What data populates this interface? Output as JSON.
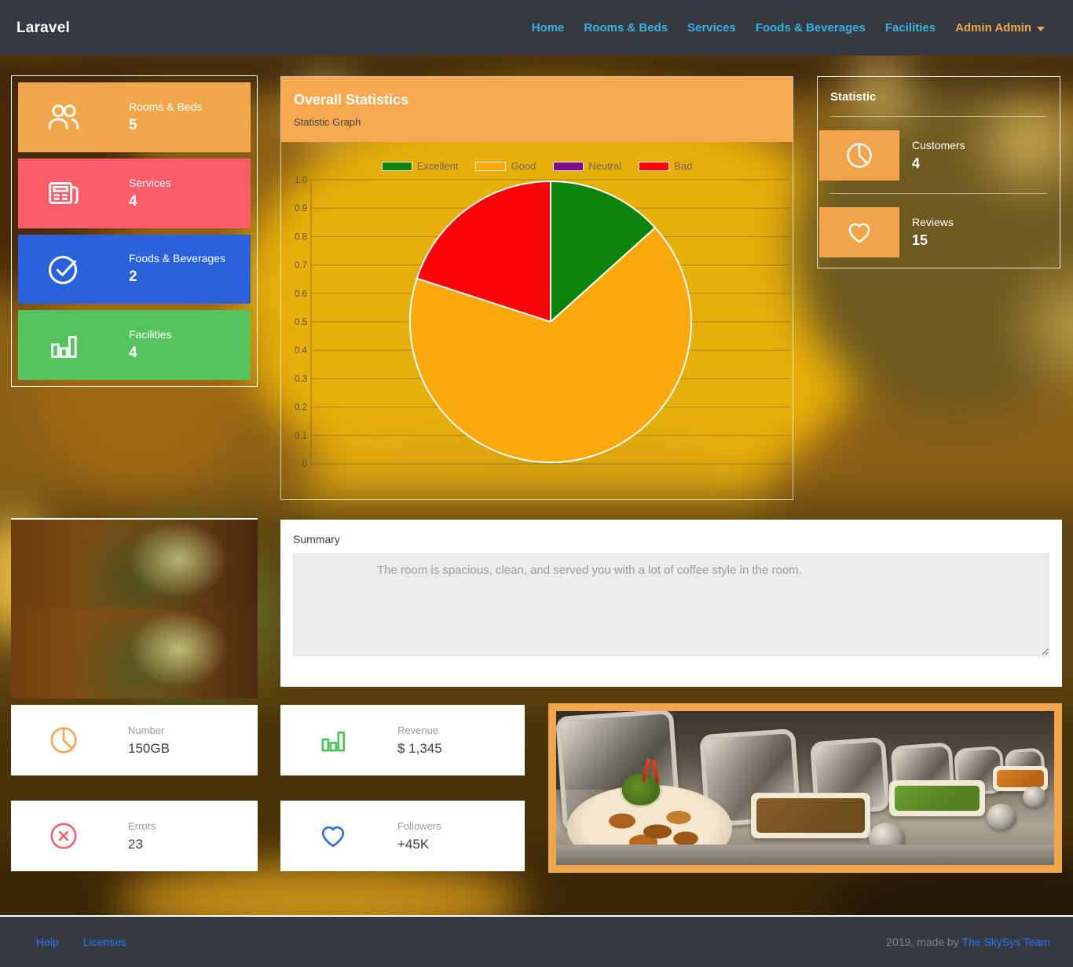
{
  "navbar": {
    "brand": "Laravel",
    "links": [
      "Home",
      "Rooms & Beds",
      "Services",
      "Foods & Beverages",
      "Facilities"
    ],
    "user": "Admin Admin",
    "bg_color": "#343a40",
    "link_color": "#3ab0e2",
    "user_color": "#f0a54c"
  },
  "sidebar": {
    "cards": [
      {
        "label": "Rooms & Beds",
        "value": "5",
        "color": "#f0a74c",
        "icon": "users-icon"
      },
      {
        "label": "Services",
        "value": "4",
        "color": "#f95d6a",
        "icon": "newspaper-icon"
      },
      {
        "label": "Foods & Beverages",
        "value": "2",
        "color": "#2a62de",
        "icon": "check-circle-icon"
      },
      {
        "label": "Facilities",
        "value": "4",
        "color": "#55c45e",
        "icon": "bar-chart-icon"
      }
    ]
  },
  "overall_panel": {
    "title": "Overall Statistics",
    "subtitle": "Statistic Graph",
    "header_color": "#f6a950"
  },
  "chart_data": {
    "type": "pie",
    "title": "Overall Statistics",
    "subtitle": "Statistic Graph",
    "categories": [
      "Excellent",
      "Good",
      "Neutral",
      "Bad"
    ],
    "values": [
      2,
      10,
      0,
      3
    ],
    "total": 15,
    "fractions": [
      0.133,
      0.667,
      0,
      0.2
    ],
    "colors": [
      "#0d830d",
      "#fba80b",
      "#7e0d87",
      "#fa0507"
    ],
    "y_axis_ticks": [
      "1.0",
      "0.9",
      "0.8",
      "0.7",
      "0.6",
      "0.5",
      "0.4",
      "0.3",
      "0.2",
      "0.1",
      "0"
    ],
    "ylim": [
      0,
      1
    ],
    "grid": true,
    "legend_position": "top-center"
  },
  "statistic_panel": {
    "title": "Statistic",
    "items": [
      {
        "label": "Customers",
        "value": "4",
        "icon": "pie-chart-icon",
        "color": "#f2a44c"
      },
      {
        "label": "Reviews",
        "value": "15",
        "icon": "heart-icon",
        "color": "#f2a44c"
      }
    ]
  },
  "summary": {
    "label": "Summary",
    "placeholder": "The room is spacious, clean, and served you with a lot of coffee style in the room."
  },
  "stat_cards": [
    {
      "label": "Number",
      "value": "150GB",
      "icon": "pie-chart-icon",
      "color": "#f0a44c"
    },
    {
      "label": "Revenue",
      "value": "$ 1,345",
      "icon": "bar-chart-icon",
      "color": "#4cc15a"
    },
    {
      "label": "Errors",
      "value": "23",
      "icon": "x-circle-icon",
      "color": "#f4606c"
    },
    {
      "label": "Followers",
      "value": "+45K",
      "icon": "heart-icon",
      "color": "#2e6bdd"
    }
  ],
  "footer": {
    "links": [
      "Help",
      "Licenses"
    ],
    "copyright_prefix": "2019, made by ",
    "team": "The SkySys Team"
  }
}
